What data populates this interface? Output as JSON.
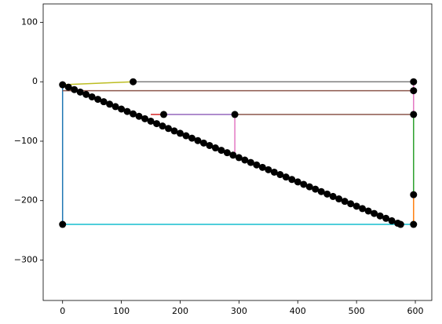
{
  "chart_data": {
    "type": "line",
    "xlim": [
      -33,
      628
    ],
    "ylim": [
      -368,
      131
    ],
    "xticks": [
      0,
      100,
      200,
      300,
      400,
      500,
      600
    ],
    "yticks": [
      100,
      0,
      {
        "value": -100,
        "label": "−100"
      },
      {
        "value": -200,
        "label": "−200"
      },
      {
        "value": -300,
        "label": "−300"
      }
    ],
    "series": [
      {
        "color": "#1f77b4",
        "x": [
          0,
          0
        ],
        "values": [
          -5,
          -240
        ]
      },
      {
        "color": "#17becf",
        "x": [
          0,
          597
        ],
        "values": [
          -240,
          -240
        ]
      },
      {
        "color": "#ff7f0e",
        "x": [
          597,
          597
        ],
        "values": [
          -240,
          -190
        ]
      },
      {
        "color": "#2ca02c",
        "x": [
          597,
          597
        ],
        "values": [
          -190,
          -55
        ]
      },
      {
        "color": "#e377c2",
        "x": [
          597,
          597
        ],
        "values": [
          -55,
          0
        ]
      },
      {
        "color": "#7f7f7f",
        "x": [
          597,
          120
        ],
        "values": [
          0,
          0
        ]
      },
      {
        "color": "#bcbd22",
        "x": [
          120,
          0
        ],
        "values": [
          0,
          -5
        ]
      },
      {
        "color": "#8c564b",
        "x": [
          0,
          597
        ],
        "values": [
          -15,
          -15
        ]
      },
      {
        "color": "#8c564b",
        "x": [
          293,
          597
        ],
        "values": [
          -55,
          -55
        ]
      },
      {
        "color": "#9467bd",
        "x": [
          172,
          293
        ],
        "values": [
          -55,
          -55
        ]
      },
      {
        "color": "#d62728",
        "x": [
          150,
          172
        ],
        "values": [
          -55,
          -55
        ]
      },
      {
        "color": "#e377c2",
        "x": [
          293,
          293
        ],
        "values": [
          -55,
          -120
        ]
      }
    ],
    "points": {
      "color": "#000000",
      "x": [
        0,
        120,
        597,
        597,
        172,
        293,
        597,
        597,
        0,
        597,
        10,
        20,
        30,
        40,
        50,
        60,
        70,
        80,
        90,
        100,
        110,
        120,
        130,
        140,
        150,
        160,
        170,
        180,
        190,
        200,
        210,
        220,
        230,
        240,
        250,
        260,
        270,
        280,
        290,
        300,
        310,
        320,
        330,
        340,
        350,
        360,
        370,
        380,
        390,
        400,
        410,
        420,
        430,
        440,
        450,
        460,
        470,
        480,
        490,
        500,
        510,
        520,
        530,
        540,
        550,
        560,
        570,
        575
      ],
      "values": [
        -5,
        0,
        0,
        -15,
        -55,
        -55,
        -55,
        -190,
        -240,
        -240,
        -9.1,
        -13.2,
        -17.3,
        -21.3,
        -25.4,
        -29.5,
        -33.6,
        -37.7,
        -41.8,
        -45.9,
        -50.0,
        -54.0,
        -58.1,
        -62.2,
        -66.3,
        -70.4,
        -74.5,
        -78.6,
        -82.7,
        -86.7,
        -90.8,
        -94.9,
        -99.0,
        -103.1,
        -107.2,
        -111.3,
        -115.3,
        -119.4,
        -123.5,
        -127.6,
        -131.7,
        -135.8,
        -139.9,
        -144.0,
        -148.0,
        -152.1,
        -156.2,
        -160.3,
        -164.4,
        -168.5,
        -172.6,
        -176.7,
        -180.7,
        -184.8,
        -188.9,
        -193.0,
        -197.1,
        -201.2,
        -205.3,
        -209.4,
        -213.4,
        -217.5,
        -221.6,
        -225.7,
        -229.8,
        -233.9,
        -238.0,
        -240
      ]
    }
  }
}
